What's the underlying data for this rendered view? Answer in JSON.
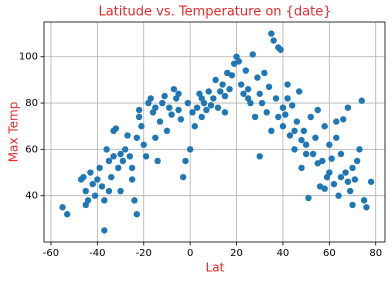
{
  "chart_data": {
    "type": "scatter",
    "title": "Latitude vs. Temperature on {date}",
    "x_label": "Lat",
    "y_label": "Max Temp",
    "color": "#1f77b4",
    "grid": true,
    "xlim": [
      -63,
      84
    ],
    "ylim": [
      20,
      115
    ],
    "xticks": [
      -60,
      -40,
      -20,
      0,
      20,
      40,
      60,
      80
    ],
    "yticks": [
      40,
      60,
      80,
      100
    ],
    "x": [
      -55,
      -53,
      -47,
      -46,
      -45,
      -44,
      -43,
      -42,
      -41,
      -40,
      -39,
      -38,
      -37,
      -37,
      -36,
      -35,
      -34,
      -33,
      -33,
      -32,
      -31,
      -30,
      -30,
      -29,
      -28,
      -27,
      -26,
      -25,
      -24,
      -23,
      -23,
      -22,
      -22,
      -21,
      -20,
      -19,
      -18,
      -17,
      -16,
      -15,
      -14,
      -13,
      -12,
      -11,
      -10,
      -9,
      -8,
      -7,
      -6,
      -5,
      -4,
      -3,
      -2,
      -1,
      0,
      1,
      2,
      3,
      4,
      5,
      6,
      7,
      8,
      9,
      10,
      11,
      12,
      13,
      14,
      15,
      16,
      17,
      18,
      19,
      20,
      21,
      22,
      23,
      24,
      25,
      26,
      27,
      28,
      29,
      30,
      31,
      32,
      33,
      34,
      35,
      36,
      37,
      38,
      39,
      40,
      41,
      42,
      43,
      44,
      45,
      46,
      47,
      48,
      49,
      50,
      51,
      52,
      53,
      54,
      55,
      56,
      57,
      58,
      59,
      60,
      61,
      62,
      63,
      64,
      65,
      66,
      67,
      68,
      69,
      70,
      71,
      72,
      73,
      74,
      75,
      76,
      78,
      30,
      35,
      40,
      45,
      50,
      55,
      60,
      65,
      70,
      25,
      15,
      5,
      -5,
      -15,
      -25,
      -35,
      -45,
      42,
      38,
      48,
      58,
      68,
      63
    ],
    "values": [
      35,
      32,
      47,
      48,
      42,
      38,
      50,
      45,
      40,
      47,
      52,
      44,
      38,
      25,
      60,
      55,
      48,
      57,
      68,
      69,
      52,
      58,
      42,
      55,
      60,
      66,
      57,
      52,
      38,
      32,
      65,
      74,
      77,
      70,
      62,
      57,
      80,
      82,
      76,
      65,
      55,
      72,
      80,
      83,
      68,
      78,
      75,
      86,
      82,
      77,
      73,
      48,
      55,
      80,
      60,
      76,
      70,
      78,
      84,
      82,
      80,
      77,
      85,
      79,
      82,
      90,
      78,
      85,
      88,
      83,
      93,
      86,
      92,
      97,
      100,
      98,
      88,
      84,
      94,
      86,
      80,
      101,
      74,
      91,
      57,
      80,
      93,
      76,
      87,
      110,
      107,
      82,
      104,
      103,
      70,
      75,
      88,
      66,
      79,
      60,
      72,
      85,
      52,
      68,
      62,
      39,
      74,
      58,
      65,
      77,
      44,
      55,
      70,
      48,
      62,
      56,
      45,
      65,
      40,
      58,
      73,
      50,
      78,
      42,
      36,
      47,
      55,
      60,
      81,
      38,
      35,
      46,
      84,
      68,
      78,
      68,
      58,
      54,
      50,
      48,
      52,
      82,
      76,
      74,
      84,
      78,
      47,
      42,
      36,
      82,
      74,
      64,
      43,
      46,
      72
    ]
  }
}
